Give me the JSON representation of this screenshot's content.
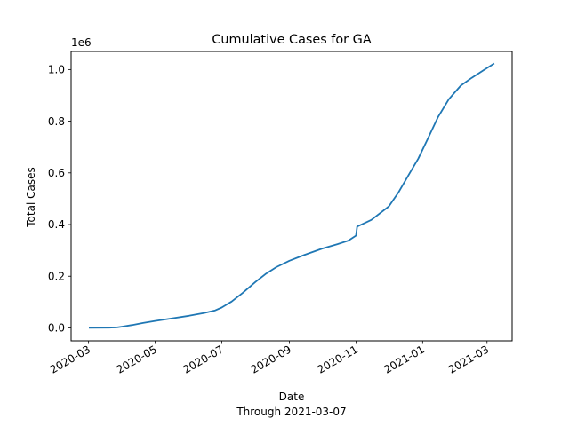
{
  "chart_data": {
    "type": "line",
    "title": "Cumulative Cases for GA",
    "xlabel": "Date",
    "xlabel_sub": "Through 2021-03-07",
    "ylabel": "Total Cases",
    "y_offset_label": "1e6",
    "x_ticks": [
      "2020-03",
      "2020-05",
      "2020-07",
      "2020-09",
      "2020-11",
      "2021-01",
      "2021-03"
    ],
    "y_ticks": [
      "0.0",
      "0.2",
      "0.4",
      "0.6",
      "0.8",
      "1.0"
    ],
    "y_tick_values": [
      0,
      0.2,
      0.4,
      0.6,
      0.8,
      1.0
    ],
    "xlim": [
      "2020-02-14",
      "2021-03-24"
    ],
    "ylim": [
      -0.05,
      1.07
    ],
    "grid": false,
    "series": [
      {
        "color": "#1f77b4",
        "points": [
          [
            "2020-03-02",
            0.0
          ],
          [
            "2020-03-20",
            0.001
          ],
          [
            "2020-03-27",
            0.002
          ],
          [
            "2020-04-01",
            0.005
          ],
          [
            "2020-04-10",
            0.011
          ],
          [
            "2020-04-20",
            0.019
          ],
          [
            "2020-05-01",
            0.027
          ],
          [
            "2020-05-15",
            0.036
          ],
          [
            "2020-06-01",
            0.047
          ],
          [
            "2020-06-15",
            0.058
          ],
          [
            "2020-06-25",
            0.068
          ],
          [
            "2020-07-01",
            0.079
          ],
          [
            "2020-07-10",
            0.102
          ],
          [
            "2020-07-20",
            0.135
          ],
          [
            "2020-08-01",
            0.178
          ],
          [
            "2020-08-10",
            0.208
          ],
          [
            "2020-08-20",
            0.235
          ],
          [
            "2020-09-01",
            0.26
          ],
          [
            "2020-09-15",
            0.283
          ],
          [
            "2020-10-01",
            0.307
          ],
          [
            "2020-10-15",
            0.324
          ],
          [
            "2020-10-25",
            0.338
          ],
          [
            "2020-11-01",
            0.357
          ],
          [
            "2020-11-02",
            0.392
          ],
          [
            "2020-11-15",
            0.418
          ],
          [
            "2020-12-01",
            0.47
          ],
          [
            "2020-12-10",
            0.525
          ],
          [
            "2020-12-20",
            0.598
          ],
          [
            "2020-12-28",
            0.655
          ],
          [
            "2021-01-05",
            0.725
          ],
          [
            "2021-01-15",
            0.815
          ],
          [
            "2021-01-25",
            0.885
          ],
          [
            "2021-02-05",
            0.938
          ],
          [
            "2021-02-15",
            0.968
          ],
          [
            "2021-02-25",
            0.995
          ],
          [
            "2021-03-07",
            1.022
          ]
        ]
      }
    ]
  }
}
